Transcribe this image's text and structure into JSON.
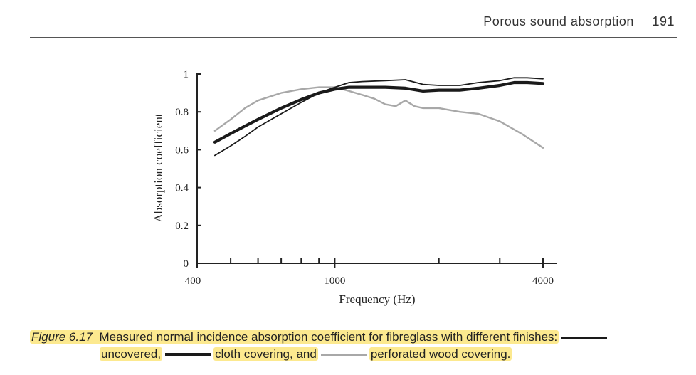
{
  "header": {
    "title": "Porous sound absorption",
    "page": "191"
  },
  "colors": {
    "uncovered": "#1a1a1a",
    "cloth": "#1a1a1a",
    "perforated": "#a8a8a8",
    "highlight": "#fce98f"
  },
  "caption": {
    "figure": "Figure 6.17",
    "text": "Measured normal incidence absorption coefficient for fibreglass with different finishes:",
    "uncovered": "uncovered,",
    "cloth": "cloth covering, and",
    "perforated": "perforated wood covering."
  },
  "chart_data": {
    "type": "line",
    "xscale": "log",
    "xlim": [
      400,
      4000
    ],
    "ylim": [
      0,
      1
    ],
    "xlabel": "Frequency (Hz)",
    "ylabel": "Absorption coefficient",
    "xticks_labeled": [
      400,
      1000,
      4000
    ],
    "xticks_minor": [
      500,
      600,
      700,
      800,
      900,
      2000,
      3000
    ],
    "yticks": [
      "0",
      "0.2",
      "0.4",
      "0.6",
      "0.8",
      "1"
    ],
    "grid": false,
    "series": [
      {
        "key": "uncovered",
        "style": "thin-black",
        "x": [
          450,
          500,
          550,
          600,
          700,
          800,
          900,
          1000,
          1100,
          1200,
          1400,
          1600,
          1800,
          2000,
          2300,
          2600,
          3000,
          3300,
          3600,
          4000
        ],
        "y": [
          0.57,
          0.62,
          0.67,
          0.72,
          0.79,
          0.85,
          0.9,
          0.93,
          0.955,
          0.96,
          0.965,
          0.97,
          0.945,
          0.94,
          0.94,
          0.955,
          0.965,
          0.98,
          0.98,
          0.975
        ]
      },
      {
        "key": "cloth",
        "style": "thick-black",
        "x": [
          450,
          500,
          550,
          600,
          700,
          800,
          900,
          1000,
          1100,
          1200,
          1400,
          1600,
          1800,
          2000,
          2300,
          2600,
          3000,
          3300,
          3600,
          4000
        ],
        "y": [
          0.64,
          0.685,
          0.725,
          0.76,
          0.82,
          0.865,
          0.9,
          0.92,
          0.93,
          0.93,
          0.93,
          0.925,
          0.91,
          0.915,
          0.915,
          0.925,
          0.94,
          0.955,
          0.955,
          0.95
        ]
      },
      {
        "key": "perforated",
        "style": "gray",
        "x": [
          450,
          500,
          550,
          600,
          700,
          800,
          900,
          1000,
          1100,
          1200,
          1300,
          1400,
          1500,
          1600,
          1700,
          1800,
          2000,
          2300,
          2600,
          3000,
          3500,
          4000
        ],
        "y": [
          0.7,
          0.76,
          0.82,
          0.86,
          0.9,
          0.92,
          0.93,
          0.93,
          0.91,
          0.89,
          0.87,
          0.84,
          0.83,
          0.86,
          0.83,
          0.82,
          0.82,
          0.8,
          0.79,
          0.75,
          0.68,
          0.61
        ]
      }
    ]
  }
}
